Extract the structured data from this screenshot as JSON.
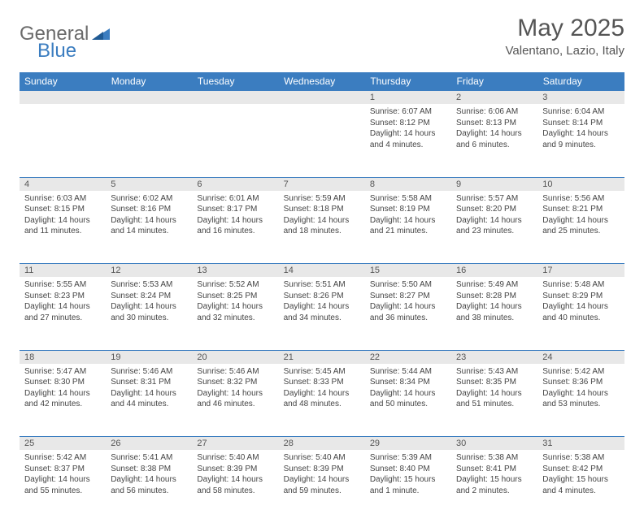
{
  "logo": {
    "text1": "General",
    "text2": "Blue"
  },
  "header": {
    "title": "May 2025",
    "location": "Valentano, Lazio, Italy"
  },
  "colors": {
    "header_bg": "#3b7dc0",
    "daynum_bg": "#e8e8e8",
    "border": "#3b7dc0"
  },
  "weekdays": [
    "Sunday",
    "Monday",
    "Tuesday",
    "Wednesday",
    "Thursday",
    "Friday",
    "Saturday"
  ],
  "weeks": [
    {
      "nums": [
        "",
        "",
        "",
        "",
        "1",
        "2",
        "3"
      ],
      "cells": [
        "",
        "",
        "",
        "",
        "Sunrise: 6:07 AM\nSunset: 8:12 PM\nDaylight: 14 hours and 4 minutes.",
        "Sunrise: 6:06 AM\nSunset: 8:13 PM\nDaylight: 14 hours and 6 minutes.",
        "Sunrise: 6:04 AM\nSunset: 8:14 PM\nDaylight: 14 hours and 9 minutes."
      ]
    },
    {
      "nums": [
        "4",
        "5",
        "6",
        "7",
        "8",
        "9",
        "10"
      ],
      "cells": [
        "Sunrise: 6:03 AM\nSunset: 8:15 PM\nDaylight: 14 hours and 11 minutes.",
        "Sunrise: 6:02 AM\nSunset: 8:16 PM\nDaylight: 14 hours and 14 minutes.",
        "Sunrise: 6:01 AM\nSunset: 8:17 PM\nDaylight: 14 hours and 16 minutes.",
        "Sunrise: 5:59 AM\nSunset: 8:18 PM\nDaylight: 14 hours and 18 minutes.",
        "Sunrise: 5:58 AM\nSunset: 8:19 PM\nDaylight: 14 hours and 21 minutes.",
        "Sunrise: 5:57 AM\nSunset: 8:20 PM\nDaylight: 14 hours and 23 minutes.",
        "Sunrise: 5:56 AM\nSunset: 8:21 PM\nDaylight: 14 hours and 25 minutes."
      ]
    },
    {
      "nums": [
        "11",
        "12",
        "13",
        "14",
        "15",
        "16",
        "17"
      ],
      "cells": [
        "Sunrise: 5:55 AM\nSunset: 8:23 PM\nDaylight: 14 hours and 27 minutes.",
        "Sunrise: 5:53 AM\nSunset: 8:24 PM\nDaylight: 14 hours and 30 minutes.",
        "Sunrise: 5:52 AM\nSunset: 8:25 PM\nDaylight: 14 hours and 32 minutes.",
        "Sunrise: 5:51 AM\nSunset: 8:26 PM\nDaylight: 14 hours and 34 minutes.",
        "Sunrise: 5:50 AM\nSunset: 8:27 PM\nDaylight: 14 hours and 36 minutes.",
        "Sunrise: 5:49 AM\nSunset: 8:28 PM\nDaylight: 14 hours and 38 minutes.",
        "Sunrise: 5:48 AM\nSunset: 8:29 PM\nDaylight: 14 hours and 40 minutes."
      ]
    },
    {
      "nums": [
        "18",
        "19",
        "20",
        "21",
        "22",
        "23",
        "24"
      ],
      "cells": [
        "Sunrise: 5:47 AM\nSunset: 8:30 PM\nDaylight: 14 hours and 42 minutes.",
        "Sunrise: 5:46 AM\nSunset: 8:31 PM\nDaylight: 14 hours and 44 minutes.",
        "Sunrise: 5:46 AM\nSunset: 8:32 PM\nDaylight: 14 hours and 46 minutes.",
        "Sunrise: 5:45 AM\nSunset: 8:33 PM\nDaylight: 14 hours and 48 minutes.",
        "Sunrise: 5:44 AM\nSunset: 8:34 PM\nDaylight: 14 hours and 50 minutes.",
        "Sunrise: 5:43 AM\nSunset: 8:35 PM\nDaylight: 14 hours and 51 minutes.",
        "Sunrise: 5:42 AM\nSunset: 8:36 PM\nDaylight: 14 hours and 53 minutes."
      ]
    },
    {
      "nums": [
        "25",
        "26",
        "27",
        "28",
        "29",
        "30",
        "31"
      ],
      "cells": [
        "Sunrise: 5:42 AM\nSunset: 8:37 PM\nDaylight: 14 hours and 55 minutes.",
        "Sunrise: 5:41 AM\nSunset: 8:38 PM\nDaylight: 14 hours and 56 minutes.",
        "Sunrise: 5:40 AM\nSunset: 8:39 PM\nDaylight: 14 hours and 58 minutes.",
        "Sunrise: 5:40 AM\nSunset: 8:39 PM\nDaylight: 14 hours and 59 minutes.",
        "Sunrise: 5:39 AM\nSunset: 8:40 PM\nDaylight: 15 hours and 1 minute.",
        "Sunrise: 5:38 AM\nSunset: 8:41 PM\nDaylight: 15 hours and 2 minutes.",
        "Sunrise: 5:38 AM\nSunset: 8:42 PM\nDaylight: 15 hours and 4 minutes."
      ]
    }
  ]
}
